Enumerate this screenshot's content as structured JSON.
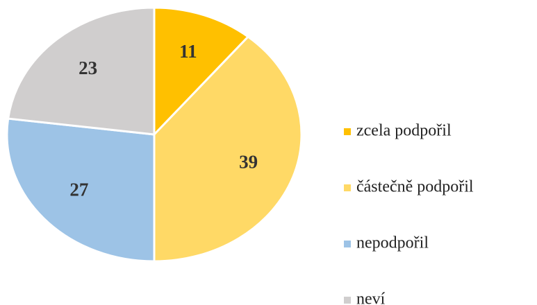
{
  "chart_data": {
    "type": "pie",
    "categories": [
      "zcela podpořil",
      "částečně podpořil",
      "nepodpořil",
      "neví"
    ],
    "values": [
      11,
      39,
      27,
      23
    ],
    "colors": [
      "#ffc000",
      "#ffd966",
      "#9dc3e6",
      "#d0cece"
    ],
    "legend": "right"
  }
}
